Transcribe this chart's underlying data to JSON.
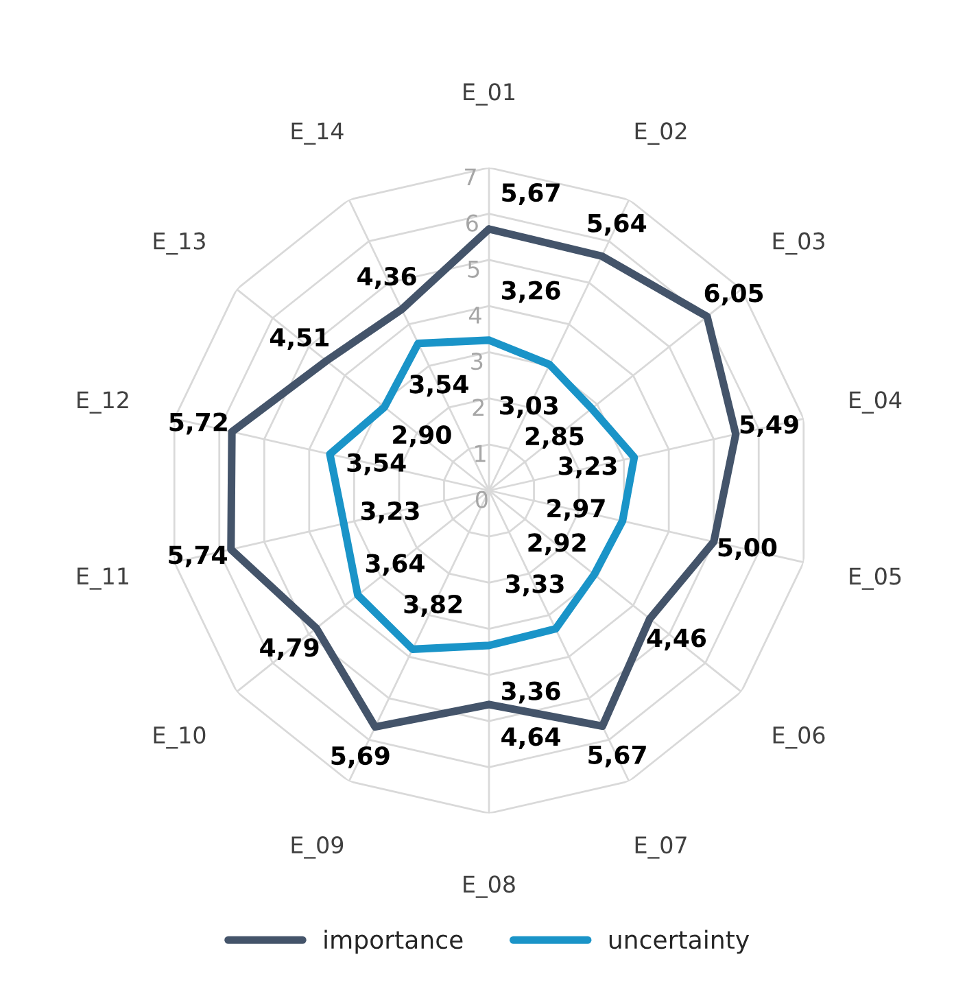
{
  "chart_data": {
    "type": "radar",
    "categories": [
      "E_01",
      "E_02",
      "E_03",
      "E_04",
      "E_05",
      "E_06",
      "E_07",
      "E_08",
      "E_09",
      "E_10",
      "E_11",
      "E_12",
      "E_13",
      "E_14"
    ],
    "series": [
      {
        "name": "importance",
        "color": "#44546a",
        "values": [
          5.67,
          5.64,
          6.05,
          5.49,
          5.0,
          4.46,
          5.67,
          4.64,
          5.69,
          4.79,
          5.74,
          5.72,
          4.51,
          4.36
        ],
        "value_labels": [
          "5,67",
          "5,64",
          "6,05",
          "5,49",
          "5,00",
          "4,46",
          "5,67",
          "4,64",
          "5,69",
          "4,79",
          "5,74",
          "5,72",
          "4,51",
          "4,36"
        ]
      },
      {
        "name": "uncertainty",
        "color": "#1a94c8",
        "values": [
          3.26,
          3.03,
          2.85,
          3.23,
          2.97,
          2.92,
          3.33,
          3.36,
          3.82,
          3.64,
          3.23,
          3.54,
          2.9,
          3.54
        ],
        "value_labels": [
          "3,26",
          "3,03",
          "2,85",
          "3,23",
          "2,97",
          "2,92",
          "3,33",
          "3,36",
          "3,82",
          "3,64",
          "3,23",
          "3,54",
          "2,90",
          "3,54"
        ]
      }
    ],
    "ylim": [
      0,
      7
    ],
    "yticks": [
      0,
      1,
      2,
      3,
      4,
      5,
      6,
      7
    ],
    "grid": true,
    "legend": "bottom",
    "data_labels": true,
    "marker": "none",
    "line_style": "solid"
  }
}
